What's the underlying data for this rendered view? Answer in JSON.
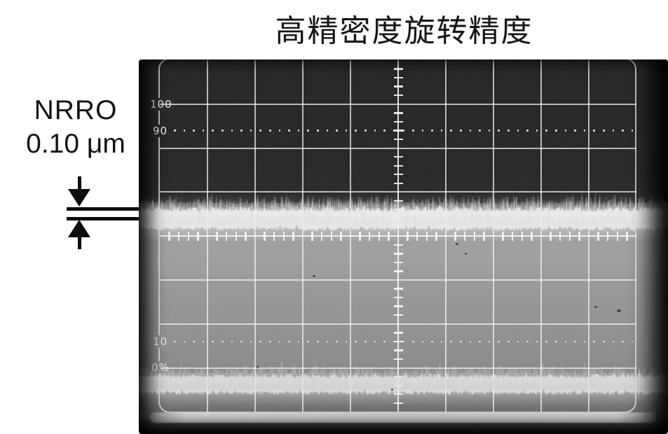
{
  "title": "高精密度旋转精度",
  "annotation": {
    "line1": "NRRO",
    "line2": "0.10 μm"
  },
  "scope": {
    "labels": {
      "p100": "100",
      "p90": "90",
      "p10": "10",
      "p0": "0%"
    }
  },
  "colors": {
    "ink": "#111111",
    "photo_dark": "#171717",
    "photo_gray": "#949494",
    "graticule_line": "#f2f2f2",
    "trace_band": "#ececec"
  },
  "chart_data": {
    "type": "area",
    "title": "高精密度旋转精度",
    "description": "Oscilloscope photograph of spindle non-repeatable runout: a flat horizontal noise band (NRRO trace) spans the full 10-division sweep at about 57% of the 0–100% graticule scale; its thickness is annotated as NRRO 0.10 μm; a second baseline noise band lies just below the 0% graticule line; a bright glare strip runs along the bottom edge of the photo.",
    "x_axis": {
      "divisions": 10,
      "tick_labels": []
    },
    "y_axis": {
      "divisions": 8,
      "tick_labels": [
        "100",
        "90",
        "10",
        "0%"
      ],
      "dotted_levels_percent": [
        90,
        10
      ],
      "labeled_solid_levels_percent": [
        100,
        0
      ]
    },
    "series": [
      {
        "name": "NRRO noise band",
        "shape": "flat-noise-band",
        "center_level_percent": 57,
        "band_thickness_um": 0.1,
        "x_extent": "full sweep"
      },
      {
        "name": "baseline noise band",
        "shape": "flat-noise-band",
        "center_level_percent": -6,
        "x_extent": "full sweep"
      }
    ],
    "legend": "none",
    "grid": "10x8 oscilloscope graticule, minor ticks on both center axes, dotted 10%/90% lines"
  }
}
